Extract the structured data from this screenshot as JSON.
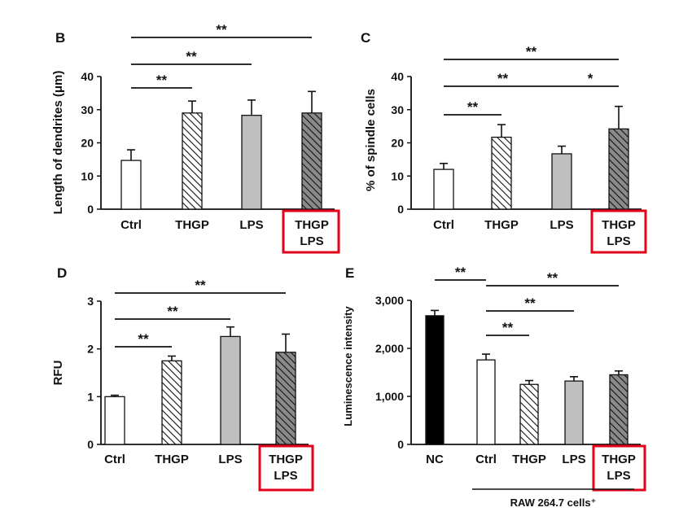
{
  "colors": {
    "axis": "#111111",
    "bar_edge": "#111111",
    "white_fill": "#ffffff",
    "gray_fill": "#bfbfbf",
    "dark_hatch_bg": "#8a8a8a",
    "black_fill": "#000000",
    "highlight_box": "#e3001b"
  },
  "chart_data": [
    {
      "panel": "B",
      "type": "bar",
      "ylabel": "Length of dendrites (μm)",
      "ylim": [
        0,
        40
      ],
      "yticks": [
        "0",
        "10",
        "20",
        "30",
        "40"
      ],
      "categories": [
        "Ctrl",
        "THGP",
        "LPS",
        "THGP LPS"
      ],
      "category_lines": [
        [
          "Ctrl"
        ],
        [
          "THGP"
        ],
        [
          "LPS"
        ],
        [
          "THGP",
          "LPS"
        ]
      ],
      "values": [
        14.7,
        29.0,
        28.3,
        29.0
      ],
      "errors": [
        3.2,
        3.6,
        4.6,
        6.5
      ],
      "fills": [
        "white",
        "hatch",
        "gray",
        "dark_hatch"
      ],
      "highlighted_category": "THGP LPS",
      "significance": [
        {
          "from": 0,
          "to": 1,
          "label": "**"
        },
        {
          "from": 0,
          "to": 2,
          "label": "**"
        },
        {
          "from": 0,
          "to": 3,
          "label": "**"
        }
      ]
    },
    {
      "panel": "C",
      "type": "bar",
      "ylabel": "% of spindle cells",
      "ylim": [
        0,
        40
      ],
      "yticks": [
        "0",
        "10",
        "20",
        "30",
        "40"
      ],
      "categories": [
        "Ctrl",
        "THGP",
        "LPS",
        "THGP LPS"
      ],
      "category_lines": [
        [
          "Ctrl"
        ],
        [
          "THGP"
        ],
        [
          "LPS"
        ],
        [
          "THGP",
          "LPS"
        ]
      ],
      "values": [
        12.0,
        21.7,
        16.7,
        24.2
      ],
      "errors": [
        1.8,
        3.8,
        2.3,
        6.8
      ],
      "fills": [
        "white",
        "hatch",
        "gray",
        "dark_hatch"
      ],
      "highlighted_category": "THGP LPS",
      "significance": [
        {
          "from": 0,
          "to": 1,
          "label": "**"
        },
        {
          "from": 0,
          "to": 2,
          "label": "**"
        },
        {
          "from": 2,
          "to": 3,
          "label": "*"
        },
        {
          "from": 0,
          "to": 3,
          "label": "**"
        }
      ]
    },
    {
      "panel": "D",
      "type": "bar",
      "ylabel": "RFU",
      "ylim": [
        0,
        3
      ],
      "yticks": [
        "0",
        "1",
        "2",
        "3"
      ],
      "categories": [
        "Ctrl",
        "THGP",
        "LPS",
        "THGP LPS"
      ],
      "category_lines": [
        [
          "Ctrl"
        ],
        [
          "THGP"
        ],
        [
          "LPS"
        ],
        [
          "THGP",
          "LPS"
        ]
      ],
      "values": [
        1.0,
        1.75,
        2.26,
        1.93
      ],
      "errors": [
        0.03,
        0.1,
        0.2,
        0.38
      ],
      "fills": [
        "white",
        "hatch",
        "gray",
        "dark_hatch"
      ],
      "highlighted_category": "THGP LPS",
      "significance": [
        {
          "from": 0,
          "to": 1,
          "label": "**"
        },
        {
          "from": 0,
          "to": 2,
          "label": "**"
        },
        {
          "from": 0,
          "to": 3,
          "label": "**"
        }
      ]
    },
    {
      "panel": "E",
      "type": "bar",
      "ylabel": "Luminescence intensity",
      "ylim": [
        0,
        3000
      ],
      "yticks": [
        "0",
        "1,000",
        "2,000",
        "3,000"
      ],
      "categories": [
        "NC",
        "Ctrl",
        "THGP",
        "LPS",
        "THGP LPS"
      ],
      "category_lines": [
        [
          "NC"
        ],
        [
          "Ctrl"
        ],
        [
          "THGP"
        ],
        [
          "LPS"
        ],
        [
          "THGP",
          "LPS"
        ]
      ],
      "values": [
        2680,
        1760,
        1250,
        1320,
        1450
      ],
      "errors": [
        110,
        120,
        80,
        90,
        80
      ],
      "fills": [
        "black",
        "white",
        "hatch",
        "gray",
        "dark_hatch"
      ],
      "highlighted_category": "THGP LPS",
      "group_label": "RAW 264.7 cells⁺",
      "group_from": 1,
      "group_to": 4,
      "significance": [
        {
          "from": 0,
          "to": 1,
          "label": "**"
        },
        {
          "from": 1,
          "to": 2,
          "label": "**"
        },
        {
          "from": 1,
          "to": 3,
          "label": "**"
        },
        {
          "from": 1,
          "to": 4,
          "label": "**"
        }
      ]
    }
  ]
}
